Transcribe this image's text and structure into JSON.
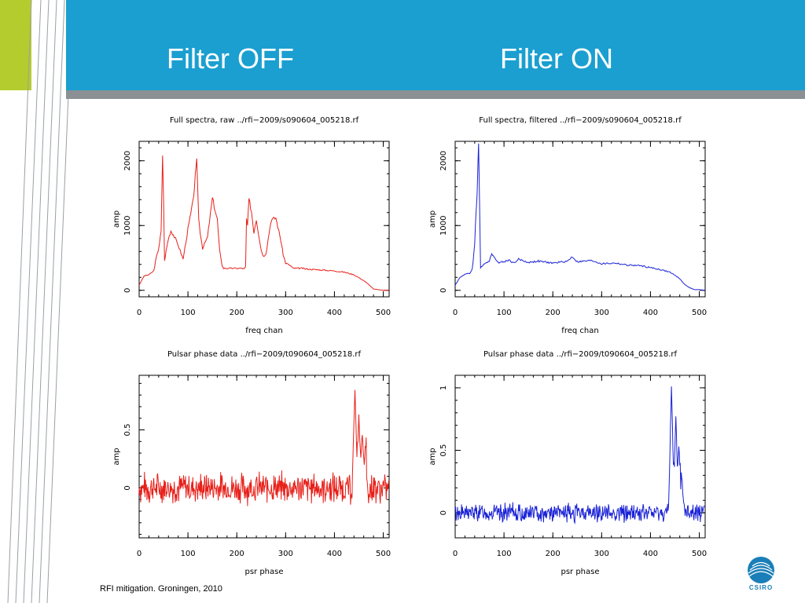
{
  "slide": {
    "title_left": "Filter OFF",
    "title_right": "Filter ON",
    "footer": "RFI mitigation.  Groningen, 2010",
    "logo_text": "CSIRO",
    "colors": {
      "banner": "#1a9fd0",
      "accent": "#b5cc2e",
      "strip": "#8a9094",
      "raw": "#e8201a",
      "filtered": "#1a22d6"
    }
  },
  "chart_data": [
    {
      "type": "line",
      "title": "Full spectra, raw ../rfi−2009/s090604_005218.rf",
      "xlabel": "freq chan",
      "ylabel": "amp",
      "xlim": [
        0,
        512
      ],
      "ylim": [
        -100,
        2300
      ],
      "xticks": [
        0,
        100,
        200,
        300,
        400,
        500
      ],
      "yticks": [
        0,
        1000,
        2000
      ],
      "color": "#e8201a",
      "kind": "spectrum",
      "series": [
        {
          "x": [
            0,
            10,
            20,
            30,
            35,
            40,
            45,
            48,
            50,
            52,
            55,
            60,
            65,
            70,
            80,
            90,
            100,
            110,
            115,
            118,
            120,
            122,
            125,
            130,
            140,
            150,
            160,
            165,
            170,
            173,
            175,
            200,
            210,
            215,
            218,
            220,
            222,
            225,
            230,
            235,
            240,
            250,
            255,
            260,
            270,
            280,
            290,
            295,
            300,
            310,
            315,
            320,
            325,
            330,
            335,
            340,
            400,
            420,
            440,
            460,
            470,
            480,
            490,
            500,
            512
          ],
          "y": [
            80,
            220,
            240,
            300,
            500,
            650,
            900,
            2100,
            1400,
            450,
            600,
            800,
            920,
            860,
            700,
            480,
            950,
            1350,
            1750,
            1980,
            1600,
            1100,
            900,
            650,
            820,
            1420,
            1100,
            600,
            380,
            340,
            340,
            340,
            340,
            330,
            360,
            1100,
            1000,
            1400,
            1220,
            900,
            1100,
            620,
            520,
            580,
            1080,
            1120,
            780,
            550,
            420,
            380,
            340,
            340,
            340,
            340,
            340,
            330,
            300,
            280,
            240,
            150,
            90,
            20,
            10,
            0,
            0
          ]
        }
      ]
    },
    {
      "type": "line",
      "title": "Full spectra, filtered ../rfi−2009/s090604_005218.rf",
      "xlabel": "freq chan",
      "ylabel": "amp",
      "xlim": [
        0,
        512
      ],
      "ylim": [
        -100,
        2300
      ],
      "xticks": [
        0,
        100,
        200,
        300,
        400,
        500
      ],
      "yticks": [
        0,
        1000,
        2000
      ],
      "color": "#1a22d6",
      "kind": "spectrum",
      "series": [
        {
          "x": [
            0,
            10,
            20,
            30,
            35,
            40,
            42,
            45,
            47,
            48,
            50,
            52,
            55,
            60,
            70,
            75,
            80,
            90,
            100,
            110,
            120,
            130,
            150,
            170,
            200,
            230,
            240,
            250,
            280,
            300,
            330,
            350,
            380,
            400,
            420,
            440,
            460,
            470,
            480,
            490,
            500,
            512
          ],
          "y": [
            80,
            200,
            250,
            260,
            330,
            700,
            1100,
            1500,
            2100,
            2250,
            1300,
            350,
            360,
            420,
            450,
            580,
            500,
            430,
            440,
            470,
            420,
            480,
            430,
            450,
            420,
            450,
            520,
            440,
            460,
            410,
            420,
            390,
            380,
            350,
            320,
            280,
            180,
            90,
            40,
            10,
            10,
            0
          ]
        }
      ]
    },
    {
      "type": "line",
      "title": "Pulsar phase data ../rfi−2009/t090604_005218.rf",
      "xlabel": "psr phase",
      "ylabel": "amp",
      "xlim": [
        0,
        512
      ],
      "ylim": [
        -0.43,
        0.97
      ],
      "xticks": [
        0,
        100,
        200,
        300,
        400,
        500
      ],
      "yticks": [
        0,
        0.5
      ],
      "color": "#e8201a",
      "kind": "pulsar",
      "series": [
        {
          "noise_amp": 0.1,
          "noise_base": 0.0,
          "seed": 7,
          "peaks": [
            {
              "x": 442,
              "y": 0.85
            },
            {
              "x": 450,
              "y": 0.62
            },
            {
              "x": 457,
              "y": 0.48
            },
            {
              "x": 462,
              "y": 0.25
            }
          ]
        }
      ]
    },
    {
      "type": "line",
      "title": "Pulsar phase data ../rfi−2009/t090604_005218.rf",
      "xlabel": "psr phase",
      "ylabel": "amp",
      "xlim": [
        0,
        512
      ],
      "ylim": [
        -0.2,
        1.1
      ],
      "xticks": [
        0,
        100,
        200,
        300,
        400,
        500
      ],
      "yticks": [
        0,
        0.5,
        1
      ],
      "color": "#1a22d6",
      "kind": "pulsar",
      "series": [
        {
          "noise_amp": 0.055,
          "noise_base": 0.0,
          "seed": 13,
          "peaks": [
            {
              "x": 443,
              "y": 1.02
            },
            {
              "x": 452,
              "y": 0.75
            },
            {
              "x": 458,
              "y": 0.55
            },
            {
              "x": 465,
              "y": 0.2
            }
          ]
        }
      ]
    }
  ]
}
